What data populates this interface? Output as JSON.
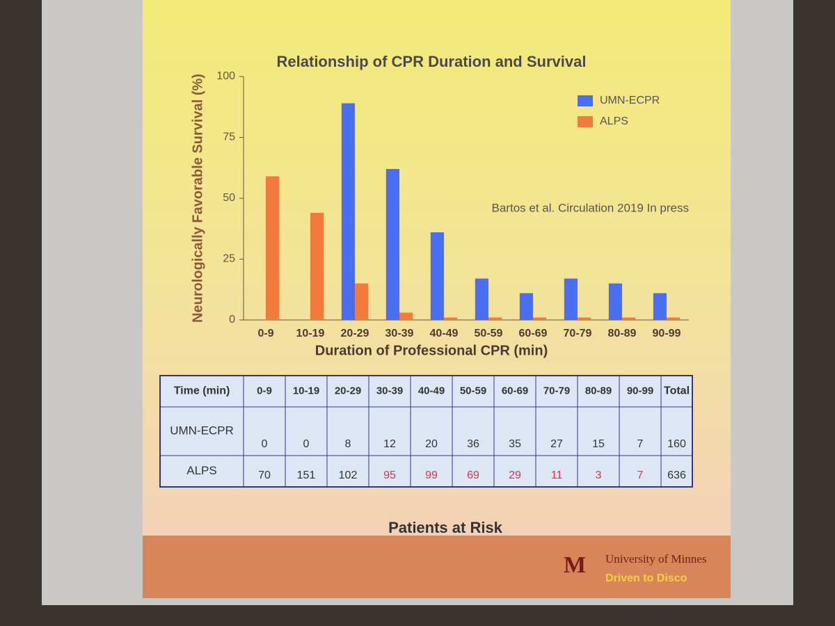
{
  "chart_data": {
    "type": "bar",
    "title": "Relationship of CPR Duration and Survival",
    "x_label": "Duration of Professional CPR (min)",
    "y_label": "Neurologically Favorable Survival (%)",
    "annotation": "Bartos et al. Circulation 2019 In press",
    "categories": [
      "0-9",
      "10-19",
      "20-29",
      "30-39",
      "40-49",
      "50-59",
      "60-69",
      "70-79",
      "80-89",
      "90-99"
    ],
    "series": [
      {
        "name": "UMN-ECPR",
        "color": "#4a6ef2",
        "values": [
          null,
          null,
          89,
          62,
          36,
          17,
          11,
          17,
          15,
          11
        ]
      },
      {
        "name": "ALPS",
        "color": "#f27a3c",
        "values": [
          59,
          44,
          15,
          3,
          1,
          1,
          1,
          1,
          1,
          1
        ]
      }
    ],
    "ylim": [
      0,
      100
    ],
    "yticks": [
      0,
      25,
      50,
      75,
      100
    ],
    "legend": "upper-right"
  },
  "table": {
    "caption": "Patients at Risk",
    "header": [
      "Time (min)",
      "0-9",
      "10-19",
      "20-29",
      "30-39",
      "40-49",
      "50-59",
      "60-69",
      "70-79",
      "80-89",
      "90-99",
      "Total"
    ],
    "rows": [
      {
        "label": "UMN-ECPR",
        "cells": [
          0,
          0,
          8,
          12,
          20,
          36,
          35,
          27,
          15,
          7,
          160
        ]
      },
      {
        "label": "ALPS",
        "cells": [
          70,
          151,
          102,
          95,
          99,
          69,
          29,
          11,
          3,
          7,
          636
        ],
        "colors": [
          "#333",
          "#333",
          "#333",
          "#e0304a",
          "#e0304a",
          "#e0304a",
          "#e0304a",
          "#e0304a",
          "#e0304a",
          "#e0304a",
          "#333"
        ]
      }
    ]
  },
  "footer": {
    "university": "University of Minnes",
    "tagline": "Driven to Disco"
  }
}
